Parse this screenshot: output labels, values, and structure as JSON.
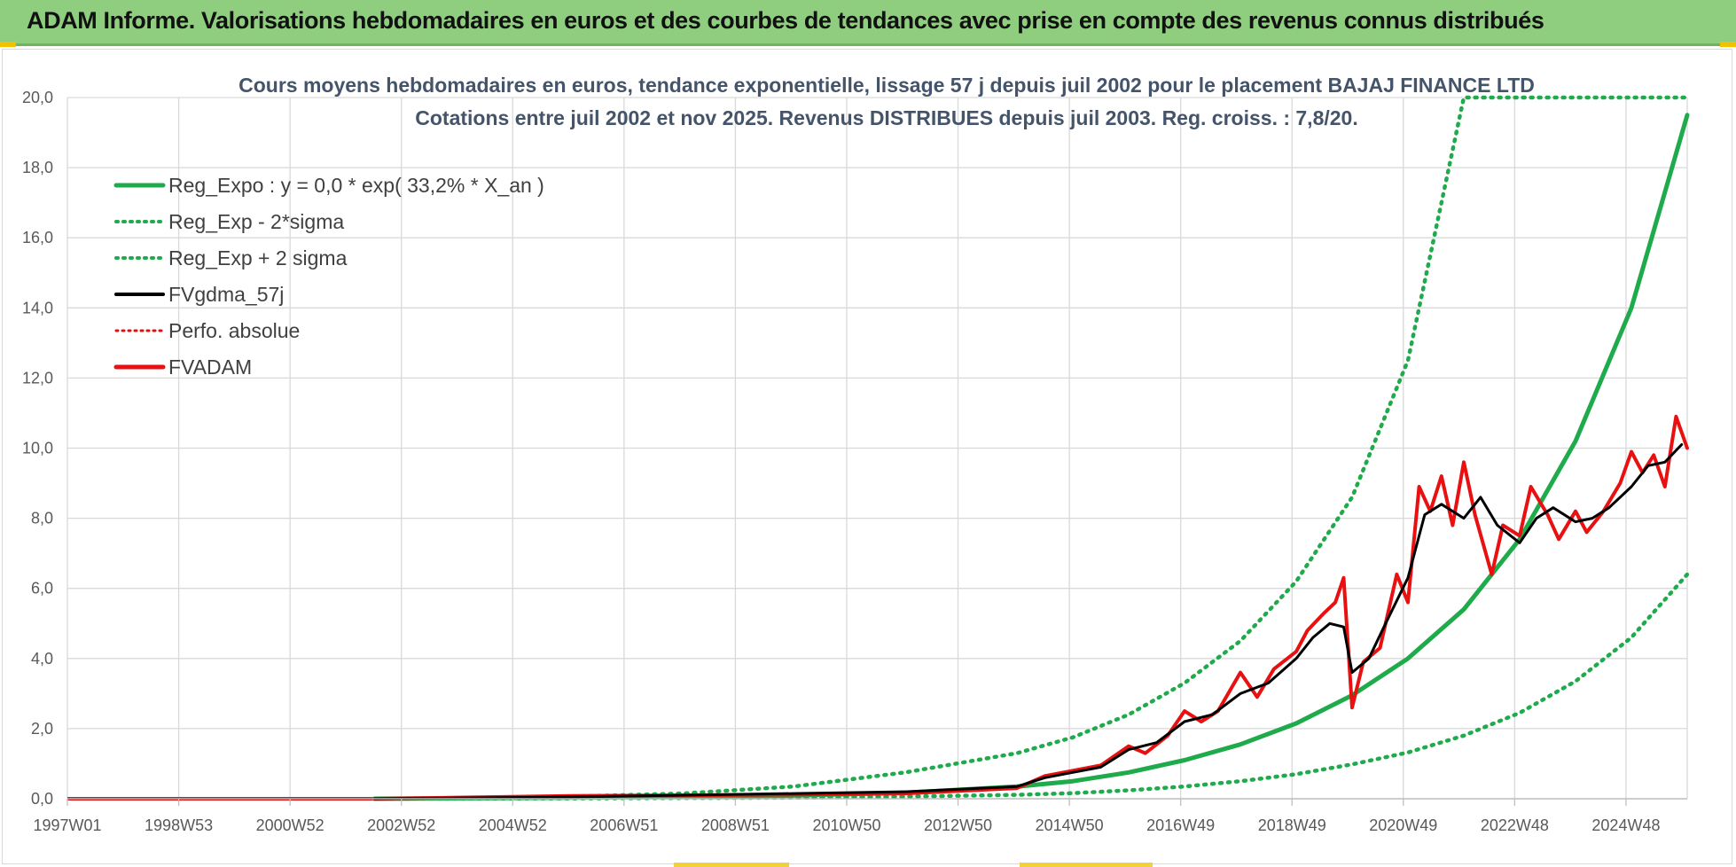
{
  "header": {
    "title": "ADAM Informe. Valorisations hebdomadaires en euros et des courbes de tendances avec prise en compte des revenus connus distribués"
  },
  "colors": {
    "header_bg": "#8fce7e",
    "reg_expo": "#1faa4b",
    "reg_bands": "#1faa4b",
    "gdma": "#000000",
    "perfo": "#e01010",
    "fvadam": "#e81010",
    "grid": "#d9d9d9"
  },
  "chart_data": {
    "type": "line",
    "title": "Cours moyens hebdomadaires en euros, tendance exponentielle, lissage 57 j depuis juil 2002 pour le placement BAJAJ FINANCE LTD",
    "subtitle": "Cotations entre juil 2002 et nov 2025. Revenus DISTRIBUES depuis juil 2003. Reg. croiss. : 7,8/20.",
    "x_ticks": [
      "1997W01",
      "1998W53",
      "2000W52",
      "2002W52",
      "2004W52",
      "2006W51",
      "2008W51",
      "2010W50",
      "2012W50",
      "2014W50",
      "2016W49",
      "2018W49",
      "2020W49",
      "2022W48",
      "2024W48"
    ],
    "x_range": [
      1997.0,
      2026.0
    ],
    "ylim": [
      0,
      20
    ],
    "y_ticks": [
      "0,0",
      "2,0",
      "4,0",
      "6,0",
      "8,0",
      "10,0",
      "12,0",
      "14,0",
      "16,0",
      "18,0",
      "20,0"
    ],
    "legend": [
      {
        "name": "Reg_Expo : y = 0,0 * exp( 33,2% *  X_an )",
        "style": "solid-green"
      },
      {
        "name": "Reg_Exp - 2*sigma",
        "style": "dotted-green"
      },
      {
        "name": "Reg_Exp + 2 sigma",
        "style": "dotted-green"
      },
      {
        "name": "FVgdma_57j",
        "style": "solid-black"
      },
      {
        "name": "Perfo. absolue",
        "style": "dotted-red"
      },
      {
        "name": "FVADAM",
        "style": "solid-red"
      }
    ],
    "series": [
      {
        "name": "Reg_Expo",
        "start_year": 2002.5,
        "x": [
          2002.5,
          2006,
          2008,
          2010,
          2012,
          2014,
          2015,
          2016,
          2017,
          2018,
          2019,
          2020,
          2021,
          2022,
          2023,
          2024,
          2025,
          2026
        ],
        "values": [
          0.0,
          0.03,
          0.05,
          0.09,
          0.17,
          0.35,
          0.5,
          0.75,
          1.1,
          1.55,
          2.15,
          2.95,
          4.0,
          5.4,
          7.4,
          10.2,
          14.0,
          19.5
        ]
      },
      {
        "name": "Reg_Exp - 2*sigma",
        "x": [
          2002.5,
          2006,
          2008,
          2010,
          2012,
          2014,
          2015,
          2016,
          2017,
          2018,
          2019,
          2020,
          2021,
          2022,
          2023,
          2024,
          2025,
          2026
        ],
        "values": [
          0.0,
          0.01,
          0.02,
          0.03,
          0.06,
          0.11,
          0.16,
          0.24,
          0.35,
          0.5,
          0.7,
          0.98,
          1.32,
          1.8,
          2.45,
          3.35,
          4.6,
          6.4
        ]
      },
      {
        "name": "Reg_Exp + 2 sigma",
        "x": [
          2002.5,
          2004,
          2006,
          2008,
          2010,
          2012,
          2014,
          2015,
          2016,
          2017,
          2018,
          2019,
          2020,
          2021,
          2022,
          2026
        ],
        "values": [
          0.0,
          0.02,
          0.06,
          0.15,
          0.35,
          0.75,
          1.3,
          1.75,
          2.4,
          3.3,
          4.5,
          6.2,
          8.6,
          12.5,
          20.0,
          20.0
        ]
      },
      {
        "name": "FVgdma_57j",
        "x": [
          2002.5,
          2006,
          2010,
          2012,
          2014,
          2014.5,
          2015,
          2015.5,
          2016,
          2016.5,
          2017,
          2017.5,
          2018,
          2018.5,
          2019,
          2019.3,
          2019.6,
          2019.85,
          2020,
          2020.3,
          2020.6,
          2021,
          2021.3,
          2021.6,
          2022,
          2022.3,
          2022.6,
          2023,
          2023.3,
          2023.6,
          2024,
          2024.3,
          2024.6,
          2025,
          2025.3,
          2025.6,
          2025.9
        ],
        "values": [
          0.0,
          0.05,
          0.15,
          0.2,
          0.35,
          0.6,
          0.75,
          0.9,
          1.4,
          1.6,
          2.2,
          2.4,
          3.0,
          3.3,
          4.0,
          4.6,
          5.0,
          4.9,
          3.6,
          4.0,
          5.0,
          6.3,
          8.1,
          8.4,
          8.0,
          8.6,
          7.8,
          7.3,
          8.0,
          8.3,
          7.9,
          8.0,
          8.3,
          8.9,
          9.5,
          9.6,
          10.1
        ]
      },
      {
        "name": "FVADAM",
        "x": [
          2002.5,
          2006,
          2010,
          2012,
          2014,
          2014.5,
          2015,
          2015.5,
          2016,
          2016.3,
          2016.7,
          2017,
          2017.3,
          2017.6,
          2018,
          2018.3,
          2018.6,
          2019,
          2019.2,
          2019.5,
          2019.7,
          2019.85,
          2020,
          2020.2,
          2020.5,
          2020.8,
          2021,
          2021.2,
          2021.4,
          2021.6,
          2021.8,
          2022,
          2022.2,
          2022.5,
          2022.7,
          2023,
          2023.2,
          2023.5,
          2023.7,
          2024,
          2024.2,
          2024.5,
          2024.8,
          2025,
          2025.2,
          2025.4,
          2025.6,
          2025.8,
          2026
        ],
        "values": [
          0.0,
          0.08,
          0.12,
          0.15,
          0.3,
          0.65,
          0.8,
          0.95,
          1.5,
          1.3,
          1.8,
          2.5,
          2.2,
          2.5,
          3.6,
          2.9,
          3.7,
          4.2,
          4.8,
          5.3,
          5.6,
          6.3,
          2.6,
          3.9,
          4.3,
          6.4,
          5.6,
          8.9,
          8.2,
          9.2,
          7.8,
          9.6,
          8.1,
          6.4,
          7.8,
          7.5,
          8.9,
          8.1,
          7.4,
          8.2,
          7.6,
          8.2,
          9.0,
          9.9,
          9.3,
          9.8,
          8.9,
          10.9,
          10.0
        ]
      }
    ]
  }
}
